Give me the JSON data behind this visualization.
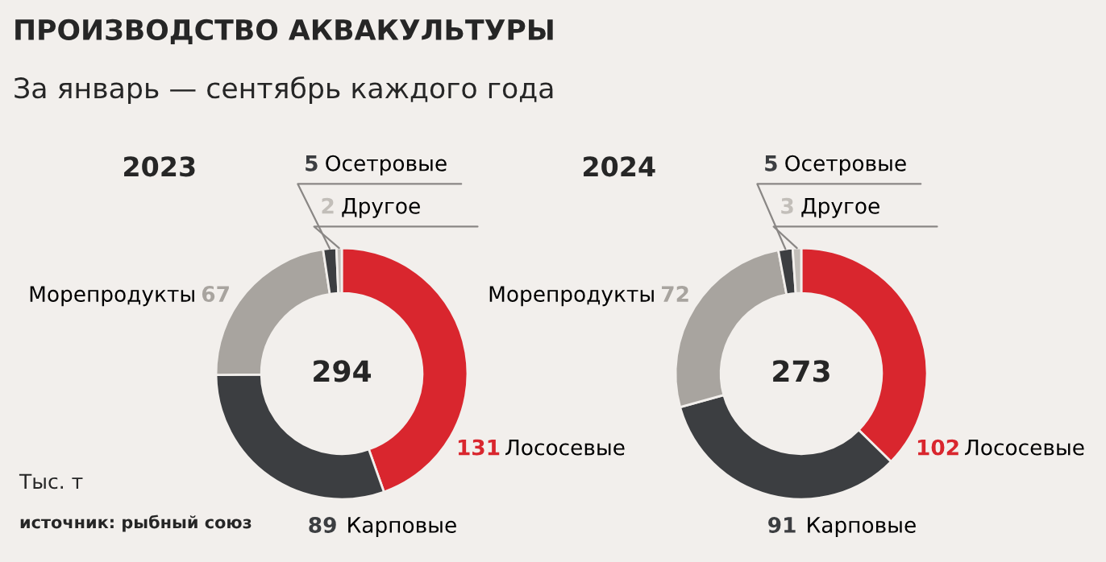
{
  "chart_data": [
    {
      "type": "donut",
      "title": "ПРОИЗВОДСТВО АКВАКУЛЬТУРЫ",
      "subtitle": "За январь — сентябрь каждого года",
      "categories": [
        "Лососевые",
        "Карповые",
        "Морепродукты",
        "Осетровые",
        "Другое"
      ],
      "values": [
        131,
        89,
        67,
        5,
        2
      ],
      "colors": [
        "#d9262e",
        "#3c3e41",
        "#a8a49f",
        "#3c3e41",
        "#c2beb9"
      ],
      "data_labels": true,
      "annotations": [
        "2023",
        "294",
        "Тыс. т",
        "источник: рыбный союз"
      ]
    },
    {
      "type": "donut",
      "categories": [
        "Лососевые",
        "Карповые",
        "Морепродукты",
        "Осетровые",
        "Другое"
      ],
      "values": [
        102,
        91,
        72,
        5,
        3
      ],
      "colors": [
        "#d9262e",
        "#3c3e41",
        "#a8a49f",
        "#3c3e41",
        "#c2beb9"
      ],
      "data_labels": true,
      "annotations": [
        "2024",
        "273"
      ]
    }
  ]
}
